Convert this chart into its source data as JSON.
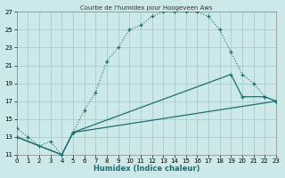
{
  "title": "Courbe de l'humidex pour Hoogeveen Aws",
  "xlabel": "Humidex (Indice chaleur)",
  "bg_color": "#cce8e8",
  "grid_color": "#aacccc",
  "line_color": "#1a7070",
  "xlim": [
    0,
    23
  ],
  "ylim": [
    11,
    27
  ],
  "xticks": [
    0,
    1,
    2,
    3,
    4,
    5,
    6,
    7,
    8,
    9,
    10,
    11,
    12,
    13,
    14,
    15,
    16,
    17,
    18,
    19,
    20,
    21,
    22,
    23
  ],
  "yticks": [
    11,
    13,
    15,
    17,
    19,
    21,
    23,
    25,
    27
  ],
  "series": [
    {
      "x": [
        0,
        1,
        2,
        3,
        4,
        5,
        6,
        7,
        8,
        9,
        10,
        11,
        12,
        13,
        14,
        15,
        16,
        17,
        18,
        19,
        20,
        21,
        22,
        23
      ],
      "y": [
        14,
        13,
        12,
        12.5,
        11,
        13.5,
        16,
        18,
        21.5,
        23,
        25,
        25.5,
        26.5,
        27,
        27,
        27,
        27,
        26.5,
        25,
        22.5,
        20,
        19,
        17.5,
        17
      ],
      "lw": 1.0,
      "ls": "--"
    },
    {
      "x": [
        0,
        4,
        5,
        19,
        20,
        22,
        23
      ],
      "y": [
        13,
        11,
        13.5,
        20,
        17.5,
        17.5,
        17
      ],
      "lw": 0.9,
      "ls": "-"
    },
    {
      "x": [
        0,
        4,
        5,
        23
      ],
      "y": [
        13,
        11,
        13.5,
        17
      ],
      "lw": 0.9,
      "ls": "-"
    }
  ]
}
